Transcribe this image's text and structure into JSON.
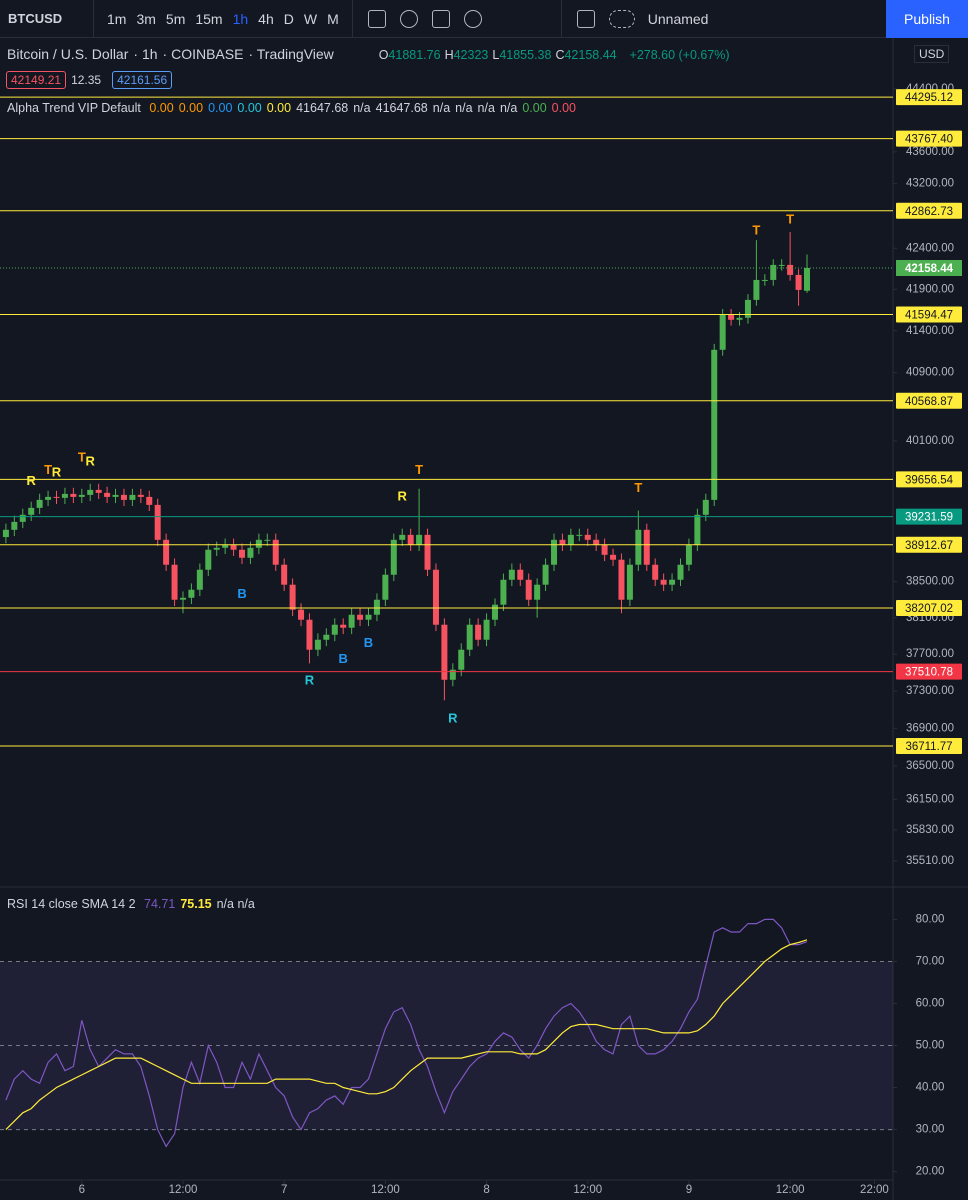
{
  "toolbar": {
    "symbol": "BTCUSD",
    "intervals": [
      "1m",
      "3m",
      "5m",
      "15m",
      "1h",
      "4h",
      "D",
      "W",
      "M"
    ],
    "active_interval": "1h",
    "layout_name": "Unnamed",
    "publish": "Publish"
  },
  "legend": {
    "title": "Bitcoin / U.S. Dollar",
    "interval": "1h",
    "exchange": "COINBASE",
    "source": "TradingView",
    "ohlc_prefixes": [
      "O",
      "H",
      "L",
      "C"
    ],
    "change": "+278.60 (+0.67%)",
    "bid": 42149.21,
    "spread": 12.35,
    "ask": 42161.56,
    "currency": "USD"
  },
  "indicator": {
    "name": "Alpha Trend VIP Default",
    "values": [
      "0.00",
      "0.00",
      "0.00",
      "0.00",
      "0.00",
      41647.68,
      "n/a",
      41647.68,
      "n/a",
      "n/a",
      "n/a",
      "n/a",
      "0.00",
      "0.00"
    ],
    "colors": [
      "#ff9800",
      "#ff9800",
      "#2196f3",
      "#26c6da",
      "#ffeb3b",
      "#d1d4dc",
      "#d1d4dc",
      "#d1d4dc",
      "#d1d4dc",
      "#d1d4dc",
      "#d1d4dc",
      "#d1d4dc",
      "#4caf50",
      "#f7525f"
    ]
  },
  "rsi_legend": {
    "name": "RSI 14 close SMA 14 2",
    "tail": "n/a n/a"
  },
  "chart_data": [
    {
      "type": "candlestick",
      "log_scale": true,
      "up_color": "#4caf50",
      "down_color": "#f7525f",
      "xlim": [
        -0.7,
        105.2
      ],
      "ylim": [
        35264,
        44982
      ],
      "yticks": [
        {
          "value": 44400,
          "label": "44400.00"
        },
        {
          "value": 43600,
          "label": "43600.00"
        },
        {
          "value": 43200,
          "label": "43200.00"
        },
        {
          "value": 42400,
          "label": "42400.00"
        },
        {
          "value": 41900,
          "label": "41900.00"
        },
        {
          "value": 41400,
          "label": "41400.00"
        },
        {
          "value": 40900,
          "label": "40900.00"
        },
        {
          "value": 40100,
          "label": "40100.00"
        },
        {
          "value": 38500,
          "label": "38500.00"
        },
        {
          "value": 38100,
          "label": "38100.00"
        },
        {
          "value": 37700,
          "label": "37700.00"
        },
        {
          "value": 37300,
          "label": "37300.00"
        },
        {
          "value": 36900,
          "label": "36900.00"
        },
        {
          "value": 36500,
          "label": "36500.00"
        },
        {
          "value": 36150,
          "label": "36150.00"
        },
        {
          "value": 35830,
          "label": "35830.00"
        },
        {
          "value": 35510,
          "label": "35510.00"
        }
      ],
      "open": [
        39000,
        39082,
        39172,
        39252,
        39331,
        39422,
        39456,
        39445,
        39490,
        39456,
        39479,
        39536,
        39502,
        39456,
        39479,
        39422,
        39479,
        39456,
        39365,
        38969,
        38689,
        38299,
        38321,
        38410,
        38633,
        38857,
        38879,
        38913,
        38857,
        38767,
        38879,
        38969,
        38969,
        38689,
        38466,
        38189,
        38078,
        37749,
        37858,
        37913,
        38023,
        37990,
        38133,
        38078,
        38133,
        38299,
        38577,
        38969,
        39025,
        38913,
        39025,
        38633,
        38023,
        37422,
        37531,
        37749,
        38023,
        37858,
        38078,
        38244,
        38521,
        38633,
        38521,
        38299,
        38466,
        38689,
        38969,
        38913,
        39025,
        39025,
        38969,
        38913,
        38800,
        38745,
        38299,
        38689,
        39082,
        38689,
        38521,
        38466,
        38521,
        38689,
        38913,
        39252,
        39422,
        41172,
        41591,
        41531,
        41555,
        41771,
        42013,
        42013,
        42196,
        42196,
        42074,
        41881.76
      ],
      "high": [
        39152,
        39242,
        39322,
        39401,
        39492,
        39526,
        39526,
        39560,
        39560,
        39549,
        39606,
        39606,
        39572,
        39549,
        39549,
        39549,
        39549,
        39526,
        39435,
        39039,
        38759,
        38391,
        38480,
        38703,
        38927,
        38949,
        38983,
        38983,
        38927,
        38949,
        39039,
        39039,
        39039,
        38759,
        38536,
        38259,
        38148,
        37928,
        37983,
        38093,
        38093,
        38203,
        38203,
        38203,
        38369,
        38647,
        39039,
        39095,
        39095,
        39550,
        39095,
        38703,
        38093,
        37601,
        37819,
        38093,
        38093,
        38148,
        38314,
        38591,
        38703,
        38703,
        38591,
        38536,
        38759,
        39039,
        39039,
        39095,
        39095,
        39095,
        39039,
        38983,
        38870,
        38815,
        38759,
        39300,
        39152,
        38759,
        38591,
        38591,
        38759,
        38983,
        39322,
        39492,
        41242,
        41661,
        41661,
        41625,
        41841,
        42500,
        42083,
        42266,
        42266,
        42600,
        42144,
        42323
      ],
      "low": [
        38930,
        39012,
        39102,
        39182,
        39261,
        39352,
        39375,
        39375,
        39386,
        39386,
        39409,
        39432,
        39386,
        39386,
        39352,
        39352,
        39386,
        39295,
        38899,
        38619,
        38229,
        38150,
        38251,
        38340,
        38563,
        38787,
        38809,
        38787,
        38697,
        38697,
        38809,
        38899,
        38619,
        38396,
        38119,
        38008,
        37600,
        37679,
        37788,
        37843,
        37920,
        37920,
        38008,
        38008,
        38063,
        38229,
        38507,
        38899,
        38843,
        38843,
        38563,
        37953,
        37200,
        37352,
        37461,
        37679,
        37788,
        37788,
        38008,
        38174,
        38451,
        38451,
        38229,
        38100,
        38396,
        38619,
        38843,
        38843,
        38955,
        38899,
        38843,
        38730,
        38675,
        38150,
        38229,
        38619,
        38619,
        38451,
        38396,
        38396,
        38451,
        38619,
        38843,
        39182,
        39352,
        41102,
        41461,
        41461,
        41485,
        41701,
        41943,
        41943,
        42126,
        42004,
        41700,
        41855.38
      ],
      "close": [
        39082,
        39172,
        39252,
        39331,
        39422,
        39456,
        39445,
        39490,
        39456,
        39479,
        39536,
        39502,
        39456,
        39479,
        39422,
        39479,
        39456,
        39365,
        38969,
        38689,
        38299,
        38321,
        38410,
        38633,
        38857,
        38879,
        38913,
        38857,
        38767,
        38879,
        38969,
        38969,
        38689,
        38466,
        38189,
        38078,
        37749,
        37858,
        37913,
        38023,
        37990,
        38133,
        38078,
        38133,
        38299,
        38577,
        38969,
        39025,
        38913,
        39025,
        38633,
        38023,
        37422,
        37531,
        37749,
        38023,
        37858,
        38078,
        38244,
        38521,
        38633,
        38521,
        38299,
        38466,
        38689,
        38969,
        38913,
        39025,
        39025,
        38969,
        38913,
        38800,
        38745,
        38299,
        38689,
        39082,
        38689,
        38521,
        38466,
        38521,
        38689,
        38913,
        39252,
        39422,
        41172,
        41591,
        41531,
        41555,
        41771,
        42013,
        42013,
        42196,
        42196,
        42074,
        41892,
        42158.44
      ],
      "levels": [
        {
          "value": 44295.12,
          "color": "#ffeb3b"
        },
        {
          "value": 43767.4,
          "label": "43767.40",
          "color": "#ffeb3b"
        },
        {
          "value": 42862.73,
          "color": "#ffeb3b"
        },
        {
          "value": 41594.47,
          "color": "#ffeb3b"
        },
        {
          "value": 40568.87,
          "color": "#ffeb3b"
        },
        {
          "value": 39656.54,
          "color": "#ffeb3b"
        },
        {
          "value": 39231.59,
          "color": "#089981"
        },
        {
          "value": 38912.67,
          "color": "#ffeb3b"
        },
        {
          "value": 38207.02,
          "color": "#ffeb3b"
        },
        {
          "value": 37510.78,
          "color": "#f23645"
        },
        {
          "value": 36711.77,
          "color": "#ffeb3b"
        }
      ],
      "last_price_color": "#4caf50",
      "annotations": [
        {
          "text": "R",
          "x": 3,
          "y": 39630,
          "color": "#ffeb3b"
        },
        {
          "text": "T",
          "x": 5,
          "y": 39755,
          "color": "#ff9800"
        },
        {
          "text": "R",
          "x": 6,
          "y": 39730,
          "color": "#ffeb3b"
        },
        {
          "text": "T",
          "x": 9,
          "y": 39900,
          "color": "#ff9800"
        },
        {
          "text": "R",
          "x": 10,
          "y": 39855,
          "color": "#ffeb3b"
        },
        {
          "text": "B",
          "x": 28,
          "y": 38355,
          "color": "#2196f3"
        },
        {
          "text": "R",
          "x": 36,
          "y": 37410,
          "color": "#26c6da"
        },
        {
          "text": "B",
          "x": 40,
          "y": 37640,
          "color": "#2196f3"
        },
        {
          "text": "B",
          "x": 43,
          "y": 37815,
          "color": "#2196f3"
        },
        {
          "text": "R",
          "x": 47,
          "y": 39455,
          "color": "#ffeb3b"
        },
        {
          "text": "T",
          "x": 49,
          "y": 39755,
          "color": "#ff9800"
        },
        {
          "text": "R",
          "x": 53,
          "y": 37000,
          "color": "#26c6da"
        },
        {
          "text": "T",
          "x": 75,
          "y": 39550,
          "color": "#ff9800"
        },
        {
          "text": "T",
          "x": 89,
          "y": 42612,
          "color": "#ff9800"
        },
        {
          "text": "T",
          "x": 93,
          "y": 42750,
          "color": "#ff9800"
        }
      ]
    },
    {
      "type": "line",
      "xlim": [
        -0.7,
        105.2
      ],
      "ylim": [
        18,
        87
      ],
      "yticks": [
        {
          "value": 80,
          "label": "80.00"
        },
        {
          "value": 70,
          "label": "70.00"
        },
        {
          "value": 60,
          "label": "60.00"
        },
        {
          "value": 50,
          "label": "50.00"
        },
        {
          "value": 40,
          "label": "40.00"
        },
        {
          "value": 30,
          "label": "30.00"
        },
        {
          "value": 20,
          "label": "20.00"
        }
      ],
      "xticks": [
        {
          "value": 9,
          "label": "6"
        },
        {
          "value": 21,
          "label": "12:00"
        },
        {
          "value": 33,
          "label": "7"
        },
        {
          "value": 45,
          "label": "12:00"
        },
        {
          "value": 57,
          "label": "8"
        },
        {
          "value": 69,
          "label": "12:00"
        },
        {
          "value": 81,
          "label": "9"
        },
        {
          "value": 93,
          "label": "12:00"
        },
        {
          "value": 103,
          "label": "22:00"
        }
      ],
      "band": [
        30,
        70
      ],
      "band_color": "rgba(126,87,194,0.12)",
      "dashed_levels": [
        70,
        50,
        30
      ],
      "series": [
        {
          "name": "RSI",
          "color": "#7e57c2",
          "values": [
            37,
            42,
            44,
            42,
            41,
            46,
            48,
            44,
            45,
            56,
            49,
            45,
            47,
            49,
            48,
            48,
            45,
            38,
            30,
            26,
            29,
            40,
            46,
            41,
            50,
            46,
            40,
            40,
            46,
            42,
            48,
            44,
            40,
            38,
            33,
            30,
            34,
            35,
            37,
            38,
            36,
            40,
            40,
            42,
            48,
            54,
            58,
            59,
            55,
            49,
            45,
            39,
            34,
            39,
            42,
            45,
            47,
            48,
            51,
            53,
            52,
            49,
            47,
            50,
            54,
            57,
            59,
            60,
            58,
            55,
            51,
            49,
            48,
            55,
            57,
            50,
            48,
            48,
            49,
            51,
            54,
            58,
            61,
            69,
            77,
            78,
            77,
            77,
            79,
            79,
            80,
            80,
            78,
            74,
            74,
            74.71
          ]
        },
        {
          "name": "SMA",
          "color": "#ffeb3b",
          "values": [
            30,
            32,
            34,
            35,
            37,
            38.5,
            40,
            41,
            42,
            43,
            44,
            45,
            46,
            47,
            47,
            47,
            47,
            46,
            45,
            44,
            43,
            42,
            41,
            41,
            41,
            41,
            41,
            41,
            41,
            41,
            41,
            41,
            42,
            42,
            42,
            42,
            42,
            41.5,
            41,
            41,
            40,
            39.5,
            39,
            38.5,
            38.5,
            39,
            40,
            42,
            44,
            45.5,
            47,
            47,
            47,
            47,
            47,
            47.5,
            48,
            48.5,
            48.5,
            48.5,
            48.5,
            48,
            48,
            48,
            49,
            51,
            53,
            54.5,
            55,
            55,
            55,
            54.5,
            54,
            54,
            54,
            54,
            54,
            53.5,
            53,
            53,
            53,
            53,
            53.5,
            55,
            57,
            60,
            62,
            64,
            66,
            68,
            70,
            71.5,
            73,
            74,
            74.5,
            75.15
          ]
        }
      ]
    }
  ]
}
